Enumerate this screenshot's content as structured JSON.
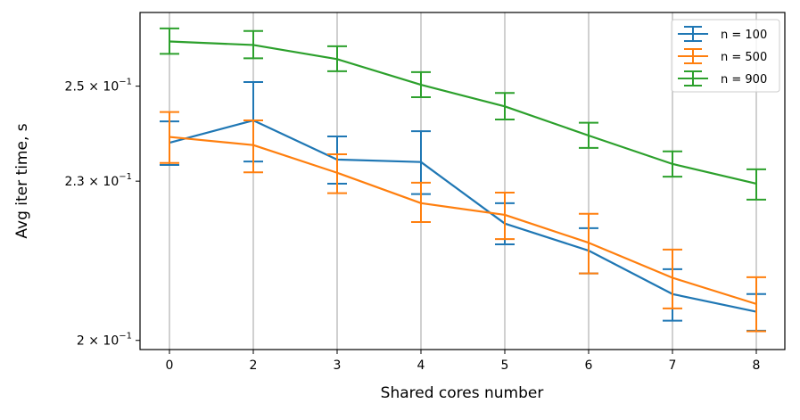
{
  "chart_data": {
    "type": "line",
    "title": "",
    "xlabel": "Shared cores number",
    "ylabel": "Avg iter time, s",
    "categories": [
      "0",
      "2",
      "3",
      "4",
      "5",
      "6",
      "7",
      "8"
    ],
    "yscale": "log",
    "ylim": [
      0.1984,
      0.2667
    ],
    "yticks": [
      {
        "value": 0.2,
        "label": "2 × 10",
        "exp": "−1"
      },
      {
        "value": 0.23,
        "label": "2.3 × 10",
        "exp": "−1"
      },
      {
        "value": 0.25,
        "label": "2.5 × 10",
        "exp": "−1"
      }
    ],
    "grid": "vertical",
    "legend": "top-right",
    "series": [
      {
        "name": "n = 100",
        "color": "#1f77b4",
        "values": [
          0.2379,
          0.2426,
          0.2344,
          0.2339,
          0.2216,
          0.2164,
          0.2083,
          0.2051
        ],
        "lower": [
          0.2333,
          0.234,
          0.2295,
          0.2274,
          0.2176,
          0.2121,
          0.2035,
          0.2017
        ],
        "upper": [
          0.2424,
          0.2509,
          0.2392,
          0.2403,
          0.2256,
          0.2207,
          0.2129,
          0.2083
        ]
      },
      {
        "name": "n = 500",
        "color": "#ff7f0e",
        "values": [
          0.2391,
          0.2374,
          0.2317,
          0.2256,
          0.2233,
          0.2179,
          0.2113,
          0.2065
        ],
        "lower": [
          0.2337,
          0.2318,
          0.2276,
          0.2219,
          0.2186,
          0.2121,
          0.2057,
          0.2016
        ],
        "upper": [
          0.2444,
          0.2426,
          0.2355,
          0.2297,
          0.2277,
          0.2235,
          0.2166,
          0.2114
        ]
      },
      {
        "name": "n = 900",
        "color": "#2ca02c",
        "values": [
          0.26,
          0.2592,
          0.256,
          0.2503,
          0.2456,
          0.2394,
          0.2335,
          0.2295
        ],
        "lower": [
          0.2572,
          0.2562,
          0.2533,
          0.2476,
          0.2428,
          0.2368,
          0.2309,
          0.2263
        ],
        "upper": [
          0.263,
          0.2624,
          0.2589,
          0.2531,
          0.2485,
          0.2421,
          0.2361,
          0.2324
        ]
      }
    ]
  }
}
